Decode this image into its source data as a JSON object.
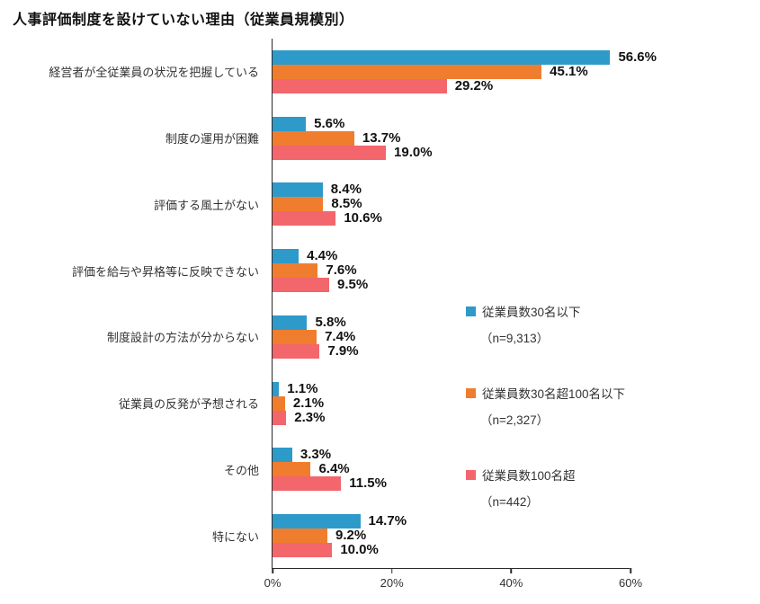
{
  "title": "人事評価制度を設けていない理由（従業員規模別）",
  "chart_data": {
    "type": "bar",
    "orientation": "horizontal",
    "title": "人事評価制度を設けていない理由（従業員規模別）",
    "categories": [
      "経営者が全従業員の状況を把握している",
      "制度の運用が困難",
      "評価する風土がない",
      "評価を給与や昇格等に反映できない",
      "制度設計の方法が分からない",
      "従業員の反発が予想される",
      "その他",
      "特にない"
    ],
    "series": [
      {
        "name": "従業員数30名以下",
        "n": 9313,
        "n_label": "（n=9,313）",
        "color": "#2E9AC9",
        "values": [
          56.6,
          5.6,
          8.4,
          4.4,
          5.8,
          1.1,
          3.3,
          14.7
        ]
      },
      {
        "name": "従業員数30名超100名以下",
        "n": 2327,
        "n_label": "（n=2,327）",
        "color": "#F07D2E",
        "values": [
          45.1,
          13.7,
          8.5,
          7.6,
          7.4,
          2.1,
          6.4,
          9.2
        ]
      },
      {
        "name": "従業員数100名超",
        "n": 442,
        "n_label": "（n=442）",
        "color": "#F2666C",
        "values": [
          29.2,
          19.0,
          10.6,
          9.5,
          7.9,
          2.3,
          11.5,
          10.0
        ]
      }
    ],
    "value_suffix": "%",
    "value_decimals": 1,
    "xlim": [
      0,
      60
    ],
    "x_ticks": [
      "0%",
      "20%",
      "40%",
      "60%"
    ],
    "grid": false,
    "legend_position": "middle-right"
  }
}
